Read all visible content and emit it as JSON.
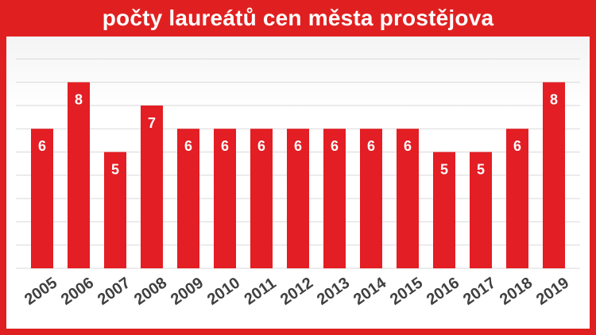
{
  "chart_data": {
    "type": "bar",
    "title": "počty laureátů cen města prostějova",
    "categories": [
      "2005",
      "2006",
      "2007",
      "2008",
      "2009",
      "2010",
      "2011",
      "2012",
      "2013",
      "2014",
      "2015",
      "2016",
      "2017",
      "2018",
      "2019"
    ],
    "values": [
      6,
      8,
      5,
      7,
      6,
      6,
      6,
      6,
      6,
      6,
      6,
      5,
      5,
      6,
      8
    ],
    "xlabel": "",
    "ylabel": "",
    "ylim": [
      0,
      8
    ],
    "grid": true,
    "legend": "none",
    "data_labels": true,
    "bar_color": "#e31e24",
    "frame_color": "#e02020"
  }
}
